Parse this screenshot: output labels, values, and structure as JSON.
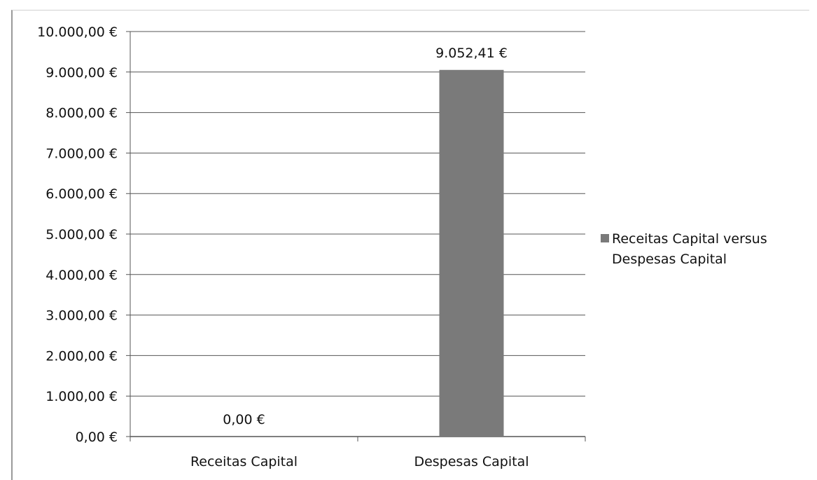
{
  "chart_data": {
    "type": "bar",
    "categories": [
      "Receitas Capital",
      "Despesas Capital"
    ],
    "series": [
      {
        "name": "Receitas Capital versus Despesas Capital",
        "values": [
          0.0,
          9052.41
        ],
        "data_labels": [
          "0,00 €",
          "9.052,41 €"
        ]
      }
    ],
    "ylim": [
      0,
      10000
    ],
    "yticks": [
      0,
      1000,
      2000,
      3000,
      4000,
      5000,
      6000,
      7000,
      8000,
      9000,
      10000
    ],
    "ytick_labels": [
      "0,00 €",
      "1.000,00 €",
      "2.000,00 €",
      "3.000,00 €",
      "4.000,00 €",
      "5.000,00 €",
      "6.000,00 €",
      "7.000,00 €",
      "8.000,00 €",
      "9.000,00 €",
      "10.000,00 €"
    ],
    "grid": true,
    "legend": {
      "position": "right",
      "lines": [
        "Receitas Capital versus",
        "Despesas Capital"
      ]
    },
    "colors": {
      "bar": "#7a7a7a",
      "grid": "#555555",
      "axis": "#555555"
    }
  }
}
